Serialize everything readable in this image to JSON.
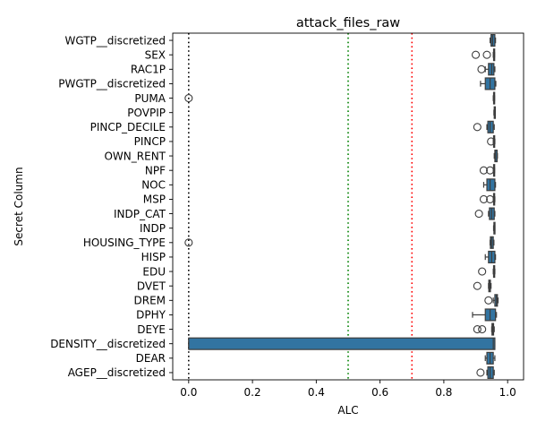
{
  "chart_data": {
    "type": "boxplot",
    "orientation": "horizontal",
    "title": "attack_files_raw",
    "xlabel": "ALC",
    "ylabel": "Secret Column",
    "xlim": [
      -0.05,
      1.05
    ],
    "xticks": [
      "0.0",
      "0.2",
      "0.4",
      "0.6",
      "0.8",
      "1.0"
    ],
    "grid": false,
    "box_color": "#3274a1",
    "reference_lines": [
      {
        "value": 0.0,
        "color": "#000000",
        "style": "dotted"
      },
      {
        "value": 0.5,
        "color": "#008000",
        "style": "dotted"
      },
      {
        "value": 0.7,
        "color": "#ff0000",
        "style": "dotted"
      }
    ],
    "categories": [
      "WGTP__discretized",
      "SEX",
      "RAC1P",
      "PWGTP__discretized",
      "PUMA",
      "POVPIP",
      "PINCP_DECILE",
      "PINCP",
      "OWN_RENT",
      "NPF",
      "NOC",
      "MSP",
      "INDP_CAT",
      "INDP",
      "HOUSING_TYPE",
      "HISP",
      "EDU",
      "DVET",
      "DREM",
      "DPHY",
      "DEYE",
      "DENSITY__discretized",
      "DEAR",
      "AGEP__discretized"
    ],
    "boxes": [
      {
        "whislo": 0.945,
        "q1": 0.948,
        "med": 0.953,
        "q3": 0.96,
        "whishi": 0.962,
        "fliers": []
      },
      {
        "whislo": 0.955,
        "q1": 0.956,
        "med": 0.957,
        "q3": 0.958,
        "whishi": 0.959,
        "fliers": [
          0.9,
          0.935
        ]
      },
      {
        "whislo": 0.93,
        "q1": 0.94,
        "med": 0.95,
        "q3": 0.957,
        "whishi": 0.96,
        "fliers": [
          0.918
        ]
      },
      {
        "whislo": 0.915,
        "q1": 0.93,
        "med": 0.945,
        "q3": 0.96,
        "whishi": 0.963,
        "fliers": []
      },
      {
        "whislo": 0.955,
        "q1": 0.956,
        "med": 0.957,
        "q3": 0.958,
        "whishi": 0.959,
        "fliers": [
          0.0
        ]
      },
      {
        "whislo": 0.957,
        "q1": 0.958,
        "med": 0.959,
        "q3": 0.96,
        "whishi": 0.961,
        "fliers": []
      },
      {
        "whislo": 0.935,
        "q1": 0.938,
        "med": 0.945,
        "q3": 0.955,
        "whishi": 0.958,
        "fliers": [
          0.905
        ]
      },
      {
        "whislo": 0.955,
        "q1": 0.956,
        "med": 0.957,
        "q3": 0.958,
        "whishi": 0.96,
        "fliers": [
          0.948
        ]
      },
      {
        "whislo": 0.958,
        "q1": 0.96,
        "med": 0.962,
        "q3": 0.967,
        "whishi": 0.968,
        "fliers": []
      },
      {
        "whislo": 0.955,
        "q1": 0.956,
        "med": 0.957,
        "q3": 0.958,
        "whishi": 0.959,
        "fliers": [
          0.925,
          0.945
        ]
      },
      {
        "whislo": 0.925,
        "q1": 0.935,
        "med": 0.945,
        "q3": 0.96,
        "whishi": 0.962,
        "fliers": []
      },
      {
        "whislo": 0.955,
        "q1": 0.956,
        "med": 0.957,
        "q3": 0.958,
        "whishi": 0.96,
        "fliers": [
          0.925,
          0.945
        ]
      },
      {
        "whislo": 0.94,
        "q1": 0.943,
        "med": 0.95,
        "q3": 0.958,
        "whishi": 0.96,
        "fliers": [
          0.91
        ]
      },
      {
        "whislo": 0.956,
        "q1": 0.957,
        "med": 0.958,
        "q3": 0.959,
        "whishi": 0.96,
        "fliers": []
      },
      {
        "whislo": 0.945,
        "q1": 0.946,
        "med": 0.95,
        "q3": 0.955,
        "whishi": 0.957,
        "fliers": [
          0.0
        ]
      },
      {
        "whislo": 0.93,
        "q1": 0.94,
        "med": 0.95,
        "q3": 0.96,
        "whishi": 0.962,
        "fliers": []
      },
      {
        "whislo": 0.955,
        "q1": 0.956,
        "med": 0.957,
        "q3": 0.958,
        "whishi": 0.96,
        "fliers": [
          0.92
        ]
      },
      {
        "whislo": 0.94,
        "q1": 0.941,
        "med": 0.943,
        "q3": 0.946,
        "whishi": 0.948,
        "fliers": [
          0.905
        ]
      },
      {
        "whislo": 0.955,
        "q1": 0.96,
        "med": 0.965,
        "q3": 0.968,
        "whishi": 0.97,
        "fliers": [
          0.94
        ]
      },
      {
        "whislo": 0.89,
        "q1": 0.93,
        "med": 0.945,
        "q3": 0.962,
        "whishi": 0.965,
        "fliers": []
      },
      {
        "whislo": 0.95,
        "q1": 0.951,
        "med": 0.953,
        "q3": 0.956,
        "whishi": 0.958,
        "fliers": [
          0.905,
          0.92
        ]
      },
      {
        "whislo": 0.0,
        "q1": 0.0,
        "med": 0.955,
        "q3": 0.96,
        "whishi": 0.96,
        "fliers": []
      },
      {
        "whislo": 0.93,
        "q1": 0.935,
        "med": 0.945,
        "q3": 0.955,
        "whishi": 0.96,
        "fliers": []
      },
      {
        "whislo": 0.935,
        "q1": 0.938,
        "med": 0.945,
        "q3": 0.955,
        "whishi": 0.958,
        "fliers": [
          0.915
        ]
      }
    ]
  }
}
